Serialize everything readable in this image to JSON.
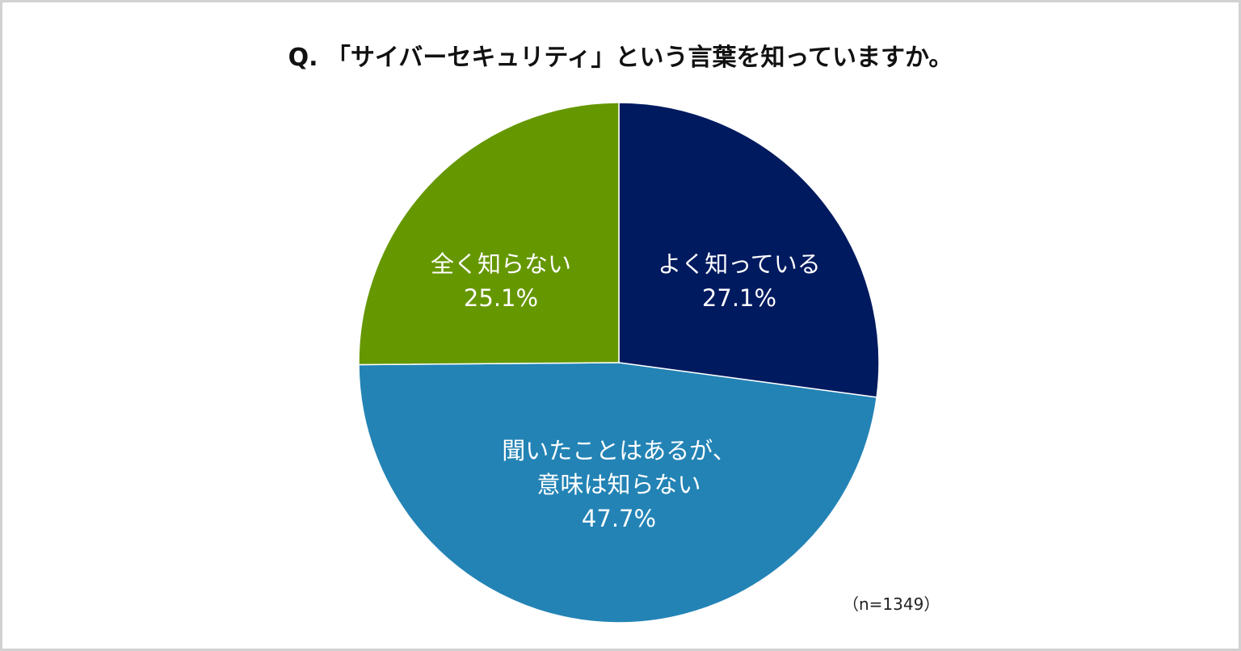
{
  "chart_data": {
    "type": "pie",
    "title": "Q. 「サイバーセキュリティ」という言葉を知っていますか。",
    "slices": [
      {
        "label": "よく知っている",
        "value": 27.1,
        "value_label": "27.1%",
        "color": "#001a5f"
      },
      {
        "label": "聞いたことはあるが、\n意味は知らない",
        "value": 47.7,
        "value_label": "47.7%",
        "color": "#2383b5"
      },
      {
        "label": "全く知らない",
        "value": 25.1,
        "value_label": "25.1%",
        "color": "#659700"
      }
    ],
    "start_angle": "12 o'clock",
    "direction": "clockwise",
    "note": "（n=1349）"
  }
}
